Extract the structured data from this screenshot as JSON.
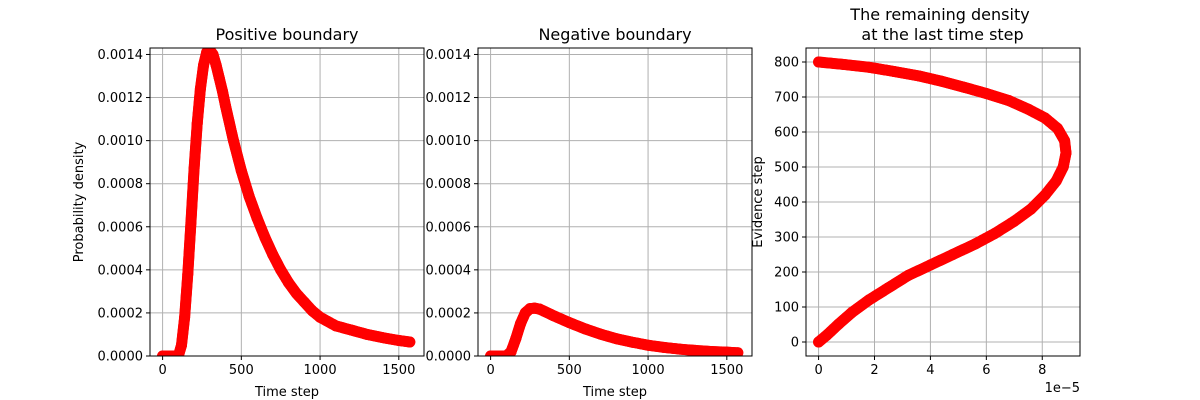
{
  "chart_data": [
    {
      "type": "scatter",
      "title": "Positive boundary",
      "xlabel": "Time step",
      "ylabel": "Probability density",
      "xlim": [
        -80,
        1660
      ],
      "ylim": [
        0,
        0.00143
      ],
      "xticks": [
        0,
        500,
        1000,
        1500
      ],
      "xtick_labels": [
        "0",
        "500",
        "1000",
        "1500"
      ],
      "yticks": [
        0,
        0.0002,
        0.0004,
        0.0006,
        0.0008,
        0.001,
        0.0012,
        0.0014
      ],
      "ytick_labels": [
        "0.0000",
        "0.0002",
        "0.0004",
        "0.0006",
        "0.0008",
        "0.0010",
        "0.0012",
        "0.0014"
      ],
      "grid": true,
      "color": "#ff0000",
      "x": [
        0,
        50,
        100,
        120,
        140,
        160,
        180,
        200,
        220,
        240,
        260,
        280,
        300,
        320,
        340,
        360,
        380,
        400,
        450,
        500,
        550,
        600,
        650,
        700,
        750,
        800,
        850,
        900,
        950,
        1000,
        1100,
        1200,
        1300,
        1400,
        1500,
        1570
      ],
      "y": [
        0,
        0,
        0,
        5e-05,
        0.00018,
        0.00038,
        0.00062,
        0.00087,
        0.00108,
        0.00124,
        0.00135,
        0.00141,
        0.00142,
        0.0014,
        0.00135,
        0.00129,
        0.00123,
        0.00116,
        0.001,
        0.00086,
        0.00074,
        0.00064,
        0.00055,
        0.00047,
        0.0004,
        0.00034,
        0.00029,
        0.00025,
        0.00021,
        0.00018,
        0.00014,
        0.00012,
        0.0001,
        8.5e-05,
        7.2e-05,
        6.5e-05
      ]
    },
    {
      "type": "scatter",
      "title": "Negative boundary",
      "xlabel": "Time step",
      "ylabel": "",
      "xlim": [
        -80,
        1660
      ],
      "ylim": [
        0,
        0.00143
      ],
      "xticks": [
        0,
        500,
        1000,
        1500
      ],
      "xtick_labels": [
        "0",
        "500",
        "1000",
        "1500"
      ],
      "yticks": [
        0,
        0.0002,
        0.0004,
        0.0006,
        0.0008,
        0.001,
        0.0012,
        0.0014
      ],
      "ytick_labels": [
        "0.0000",
        "0.0002",
        "0.0004",
        "0.0006",
        "0.0008",
        "0.0010",
        "0.0012",
        "0.0014"
      ],
      "grid": true,
      "color": "#ff0000",
      "x": [
        0,
        50,
        100,
        130,
        160,
        190,
        220,
        250,
        280,
        310,
        340,
        400,
        500,
        600,
        700,
        800,
        900,
        1000,
        1100,
        1200,
        1300,
        1400,
        1500,
        1570
      ],
      "y": [
        0,
        0,
        0,
        2e-05,
        8e-05,
        0.00015,
        0.0002,
        0.00022,
        0.000222,
        0.000218,
        0.000208,
        0.000187,
        0.000155,
        0.000126,
        0.000101,
        8e-05,
        6.4e-05,
        5e-05,
        4e-05,
        3.2e-05,
        2.6e-05,
        2.1e-05,
        1.8e-05,
        1.5e-05
      ]
    },
    {
      "type": "scatter",
      "title": "The remaining density\n at the last time step",
      "xlabel": "",
      "ylabel": "Evidence step",
      "xlim": [
        -0.45,
        9.35
      ],
      "ylim": [
        -40,
        840
      ],
      "xticks": [
        0,
        2,
        4,
        6,
        8
      ],
      "xtick_labels": [
        "0",
        "2",
        "4",
        "6",
        "8"
      ],
      "yticks": [
        0,
        100,
        200,
        300,
        400,
        500,
        600,
        700,
        800
      ],
      "ytick_labels": [
        "0",
        "100",
        "200",
        "300",
        "400",
        "500",
        "600",
        "700",
        "800"
      ],
      "x_offset_label": "1e−5",
      "grid": true,
      "color": "#ff0000",
      "x": [
        0,
        0.3,
        0.7,
        1.2,
        1.8,
        2.5,
        3.2,
        4.0,
        4.8,
        5.6,
        6.3,
        7.0,
        7.6,
        8.1,
        8.5,
        8.75,
        8.85,
        8.8,
        8.55,
        8.1,
        7.5,
        6.8,
        6.0,
        5.2,
        4.4,
        3.6,
        2.7,
        1.8,
        0.9,
        0
      ],
      "y": [
        0,
        20,
        50,
        85,
        120,
        155,
        190,
        220,
        250,
        280,
        310,
        345,
        380,
        420,
        460,
        500,
        540,
        575,
        610,
        640,
        665,
        690,
        710,
        728,
        745,
        760,
        773,
        785,
        793,
        800
      ]
    }
  ]
}
